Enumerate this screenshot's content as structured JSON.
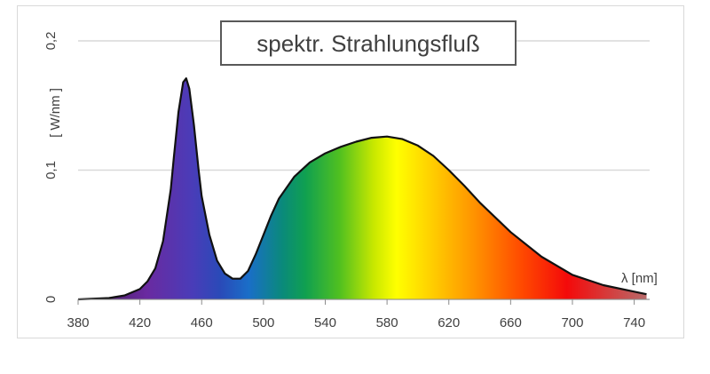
{
  "chart_data": {
    "type": "area",
    "title": "spektr. Strahlungsfluß",
    "xlabel": "λ [nm]",
    "ylabel": "[ W/nm ]",
    "xlim": [
      380,
      750
    ],
    "ylim": [
      0,
      0.2
    ],
    "x_ticks": [
      "380",
      "420",
      "460",
      "500",
      "540",
      "580",
      "620",
      "660",
      "700",
      "740"
    ],
    "y_ticks": [
      "0",
      "0,1",
      "0,2"
    ],
    "grid": true,
    "legend": "none",
    "fill": "visible-spectrum gradient",
    "series": [
      {
        "x": [
          380,
          400,
          410,
          420,
          425,
          430,
          435,
          440,
          442,
          445,
          448,
          450,
          452,
          455,
          458,
          460,
          465,
          470,
          475,
          480,
          485,
          490,
          495,
          500,
          505,
          510,
          520,
          530,
          540,
          550,
          560,
          570,
          580,
          590,
          600,
          610,
          620,
          630,
          640,
          660,
          680,
          700,
          720,
          740,
          748
        ],
        "values": [
          0.0,
          0.001,
          0.003,
          0.008,
          0.014,
          0.024,
          0.045,
          0.085,
          0.11,
          0.145,
          0.168,
          0.171,
          0.163,
          0.135,
          0.1,
          0.08,
          0.05,
          0.03,
          0.02,
          0.016,
          0.016,
          0.022,
          0.035,
          0.05,
          0.065,
          0.078,
          0.095,
          0.106,
          0.113,
          0.118,
          0.122,
          0.125,
          0.126,
          0.124,
          0.119,
          0.111,
          0.1,
          0.088,
          0.075,
          0.052,
          0.033,
          0.019,
          0.011,
          0.006,
          0.004
        ]
      }
    ]
  }
}
